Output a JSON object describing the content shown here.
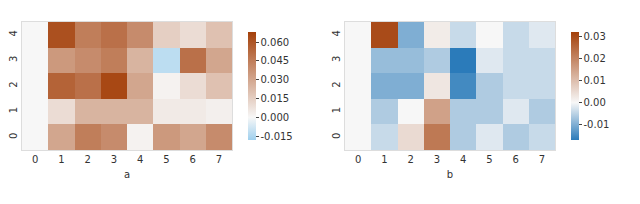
{
  "chart_data": [
    {
      "type": "heatmap",
      "x_label": "a",
      "x": [
        0,
        1,
        2,
        3,
        4,
        5,
        6,
        7
      ],
      "y": [
        0,
        1,
        2,
        3,
        4
      ],
      "z": [
        [
          0,
          0.03,
          0.045,
          0.04,
          0.002,
          0.035,
          0.03,
          0.04
        ],
        [
          0,
          0.01,
          0.025,
          0.025,
          0.025,
          0.005,
          0.005,
          0.003
        ],
        [
          0,
          0.055,
          0.05,
          0.065,
          0.03,
          0.002,
          0.01,
          0.02
        ],
        [
          0,
          0.035,
          0.04,
          0.045,
          0.025,
          -0.012,
          0.05,
          0.03
        ],
        [
          0,
          0.062,
          0.045,
          0.05,
          0.04,
          0.015,
          0.01,
          0.02
        ]
      ],
      "xlim": [
        -0.5,
        7.5
      ],
      "xticks": [
        0,
        1,
        2,
        3,
        4,
        5,
        6,
        7
      ],
      "ylim": [
        -0.5,
        4.5
      ],
      "yticks": [
        0,
        1,
        2,
        3,
        4
      ],
      "colorbar_range": [
        -0.018,
        0.068
      ],
      "colorbar_ticks": [
        -0.015,
        {
          "value": 0,
          "label": "0.000"
        },
        0.015,
        {
          "value": 0.03,
          "label": "0.030"
        },
        0.045,
        {
          "value": 0.06,
          "label": "0.060"
        }
      ],
      "grid": false
    },
    {
      "type": "heatmap",
      "x_label": "b",
      "x": [
        0,
        1,
        2,
        3,
        4,
        5,
        6,
        7
      ],
      "y": [
        0,
        1,
        2,
        3,
        4
      ],
      "z": [
        [
          0,
          -0.004,
          0.005,
          0.022,
          -0.006,
          -0.002,
          -0.006,
          -0.004
        ],
        [
          0,
          -0.006,
          0.0,
          0.015,
          -0.006,
          -0.006,
          -0.002,
          -0.006
        ],
        [
          0,
          -0.01,
          -0.01,
          0.003,
          -0.015,
          -0.006,
          -0.004,
          -0.004
        ],
        [
          0,
          -0.008,
          -0.008,
          -0.006,
          -0.017,
          -0.002,
          -0.004,
          -0.004
        ],
        [
          0,
          0.03,
          -0.01,
          0.002,
          -0.004,
          0.0,
          -0.004,
          -0.002
        ]
      ],
      "xlim": [
        -0.5,
        7.5
      ],
      "xticks": [
        0,
        1,
        2,
        3,
        4,
        5,
        6,
        7
      ],
      "ylim": [
        -0.5,
        4.5
      ],
      "yticks": [
        0,
        1,
        2,
        3,
        4
      ],
      "colorbar_range": [
        -0.017,
        0.032
      ],
      "colorbar_ticks": [
        -0.01,
        {
          "value": 0,
          "label": "0.00"
        },
        0.01,
        0.02,
        0.03
      ],
      "grid": false
    }
  ]
}
